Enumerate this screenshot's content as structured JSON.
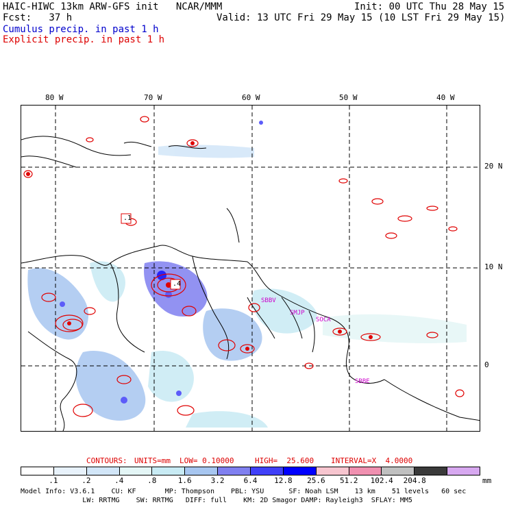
{
  "header": {
    "model_line": "HAIC-HIWC 13km ARW-GFS init   NCAR/MMM",
    "init_line": "Init: 00 UTC Thu 28 May 15",
    "fcst_line": "Fcst:   37 h",
    "valid_line": "Valid: 13 UTC Fri 29 May 15 (10 LST Fri 29 May 15)",
    "cumulus_label": "Cumulus precip. in past 1 h",
    "explicit_label": "Explicit precip. in past 1 h"
  },
  "map": {
    "lon_labels": [
      "80 W",
      "70 W",
      "60 W",
      "50 W",
      "40 W"
    ],
    "lat_labels": [
      "20 N",
      "10 N",
      "0"
    ],
    "stations": [
      "SBBV",
      "SMJP",
      "SOCA",
      "SBBE"
    ],
    "contour_boxes": [
      ".1",
      ".4"
    ]
  },
  "contours": {
    "title": "CONTOURS:",
    "units": "UNITS=mm",
    "low": "LOW= 0.10000",
    "high": "HIGH=  25.600",
    "interval": "INTERVAL=X  4.0000"
  },
  "colorbar": {
    "labels": [
      ".1",
      ".2",
      ".4",
      ".8",
      "1.6",
      "3.2",
      "6.4",
      "12.8",
      "25.6",
      "51.2",
      "102.4",
      "204.8"
    ],
    "unit": "mm",
    "colors": [
      "#ffffff",
      "#e8f2fb",
      "#d2e6f8",
      "#e4f6f6",
      "#c8ebf4",
      "#a7c6f0",
      "#8080f0",
      "#4040f8",
      "#0000ff",
      "#f7c5cf",
      "#f090b0",
      "#c0c0c0",
      "#3a3a3a",
      "#d7a8f0"
    ]
  },
  "model_info": {
    "line1": "Model Info: V3.6.1    CU: KF       MP: Thompson    PBL: YSU      SF: Noah LSM    13 km    51 levels   60 sec",
    "line2": "               LW: RRTMG    SW: RRTMG   DIFF: full    KM: 2D Smagor DAMP: Rayleigh3  SFLAY: MM5"
  }
}
